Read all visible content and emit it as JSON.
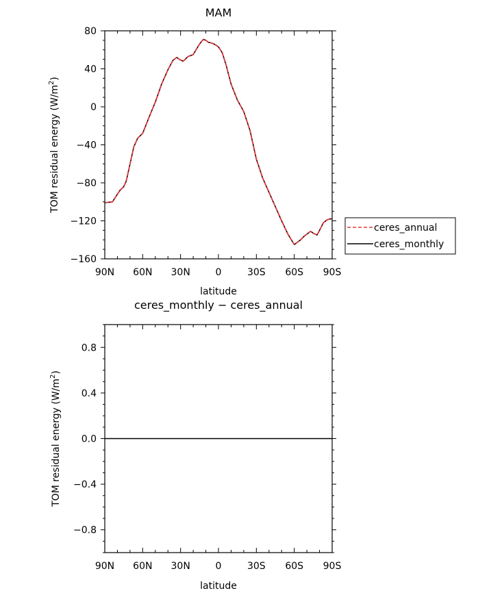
{
  "chart_data": [
    {
      "type": "line",
      "title": "MAM",
      "xlabel": "latitude",
      "ylabel": "TOM residual energy (W/m²)",
      "ylabel_base": "TOM residual energy  (W/m",
      "ylabel_sup": "2",
      "ylabel_close": ")",
      "xlim": [
        90,
        -90
      ],
      "ylim": [
        -160,
        80
      ],
      "xticks": [
        {
          "value": 90,
          "label": "90N"
        },
        {
          "value": 60,
          "label": "60N"
        },
        {
          "value": 30,
          "label": "30N"
        },
        {
          "value": 0,
          "label": "0"
        },
        {
          "value": -30,
          "label": "30S"
        },
        {
          "value": -60,
          "label": "60S"
        },
        {
          "value": -90,
          "label": "90S"
        }
      ],
      "yticks": [
        {
          "value": 80,
          "label": "80"
        },
        {
          "value": 40,
          "label": "40"
        },
        {
          "value": 0,
          "label": "0"
        },
        {
          "value": -40,
          "label": "−40"
        },
        {
          "value": -80,
          "label": "−80"
        },
        {
          "value": -120,
          "label": "−120"
        },
        {
          "value": -160,
          "label": "−160"
        }
      ],
      "legend_position": "right-outside",
      "series": [
        {
          "name": "ceres_annual",
          "color": "#e0393e",
          "dash": "dashed",
          "x": [
            90,
            84,
            82,
            78,
            75,
            73,
            70,
            67,
            64,
            60,
            55,
            50,
            45,
            40,
            36,
            33,
            31,
            28,
            24,
            20,
            15,
            12,
            10,
            8,
            5,
            2,
            0,
            -3,
            -6,
            -10,
            -15,
            -20,
            -25,
            -30,
            -35,
            -40,
            -45,
            -50,
            -55,
            -60,
            -65,
            -68,
            -70,
            -73,
            -75,
            -78,
            -80,
            -83,
            -86,
            -88,
            -90
          ],
          "y": [
            -101,
            -100,
            -96,
            -88,
            -84,
            -78,
            -60,
            -42,
            -33,
            -28,
            -11,
            5,
            24,
            39,
            49,
            52,
            50,
            48,
            53,
            55,
            66,
            71,
            70,
            68,
            67,
            65,
            63,
            57,
            44,
            24,
            7,
            -5,
            -25,
            -55,
            -75,
            -90,
            -105,
            -120,
            -134,
            -145,
            -140,
            -136,
            -134,
            -131,
            -133,
            -135,
            -130,
            -122,
            -119,
            -118,
            -118
          ],
          "values": [
            -101,
            -100,
            -96,
            -88,
            -84,
            -78,
            -60,
            -42,
            -33,
            -28,
            -11,
            5,
            24,
            39,
            49,
            52,
            50,
            48,
            53,
            55,
            66,
            71,
            70,
            68,
            67,
            65,
            63,
            57,
            44,
            24,
            7,
            -5,
            -25,
            -55,
            -75,
            -90,
            -105,
            -120,
            -134,
            -145,
            -140,
            -136,
            -134,
            -131,
            -133,
            -135,
            -130,
            -122,
            -119,
            -118,
            -118
          ]
        },
        {
          "name": "ceres_monthly",
          "color": "#000000",
          "dash": "solid",
          "x": [
            90,
            84,
            82,
            78,
            75,
            73,
            70,
            67,
            64,
            60,
            55,
            50,
            45,
            40,
            36,
            33,
            31,
            28,
            24,
            20,
            15,
            12,
            10,
            8,
            5,
            2,
            0,
            -3,
            -6,
            -10,
            -15,
            -20,
            -25,
            -30,
            -35,
            -40,
            -45,
            -50,
            -55,
            -60,
            -65,
            -68,
            -70,
            -73,
            -75,
            -78,
            -80,
            -83,
            -86,
            -88,
            -90
          ],
          "y": [
            -101,
            -100,
            -96,
            -88,
            -84,
            -78,
            -60,
            -42,
            -33,
            -28,
            -11,
            5,
            24,
            39,
            49,
            52,
            50,
            48,
            53,
            55,
            66,
            71,
            70,
            68,
            67,
            65,
            63,
            57,
            44,
            24,
            7,
            -5,
            -25,
            -55,
            -75,
            -90,
            -105,
            -120,
            -134,
            -145,
            -140,
            -136,
            -134,
            -131,
            -133,
            -135,
            -130,
            -122,
            -119,
            -118,
            -118
          ],
          "values": [
            -101,
            -100,
            -96,
            -88,
            -84,
            -78,
            -60,
            -42,
            -33,
            -28,
            -11,
            5,
            24,
            39,
            49,
            52,
            50,
            48,
            53,
            55,
            66,
            71,
            70,
            68,
            67,
            65,
            63,
            57,
            44,
            24,
            7,
            -5,
            -25,
            -55,
            -75,
            -90,
            -105,
            -120,
            -134,
            -145,
            -140,
            -136,
            -134,
            -131,
            -133,
            -135,
            -130,
            -122,
            -119,
            -118,
            -118
          ]
        }
      ]
    },
    {
      "type": "line",
      "title": "ceres_monthly − ceres_annual",
      "xlabel": "latitude",
      "ylabel": "TOM residual energy (W/m²)",
      "ylabel_base": "TOM residual energy  (W/m",
      "ylabel_sup": "2",
      "ylabel_close": ")",
      "xlim": [
        90,
        -90
      ],
      "ylim": [
        -1.0,
        1.0
      ],
      "xticks": [
        {
          "value": 90,
          "label": "90N"
        },
        {
          "value": 60,
          "label": "60N"
        },
        {
          "value": 30,
          "label": "30N"
        },
        {
          "value": 0,
          "label": "0"
        },
        {
          "value": -30,
          "label": "30S"
        },
        {
          "value": -60,
          "label": "60S"
        },
        {
          "value": -90,
          "label": "90S"
        }
      ],
      "yticks": [
        {
          "value": 0.8,
          "label": "0.8"
        },
        {
          "value": 0.4,
          "label": "0.4"
        },
        {
          "value": 0.0,
          "label": "0.0"
        },
        {
          "value": -0.4,
          "label": "−0.4"
        },
        {
          "value": -0.8,
          "label": "−0.8"
        }
      ],
      "series": [
        {
          "color": "#000000",
          "dash": "solid",
          "x": [
            90,
            -90
          ],
          "y": [
            0,
            0
          ],
          "values": [
            0,
            0
          ]
        }
      ]
    }
  ]
}
